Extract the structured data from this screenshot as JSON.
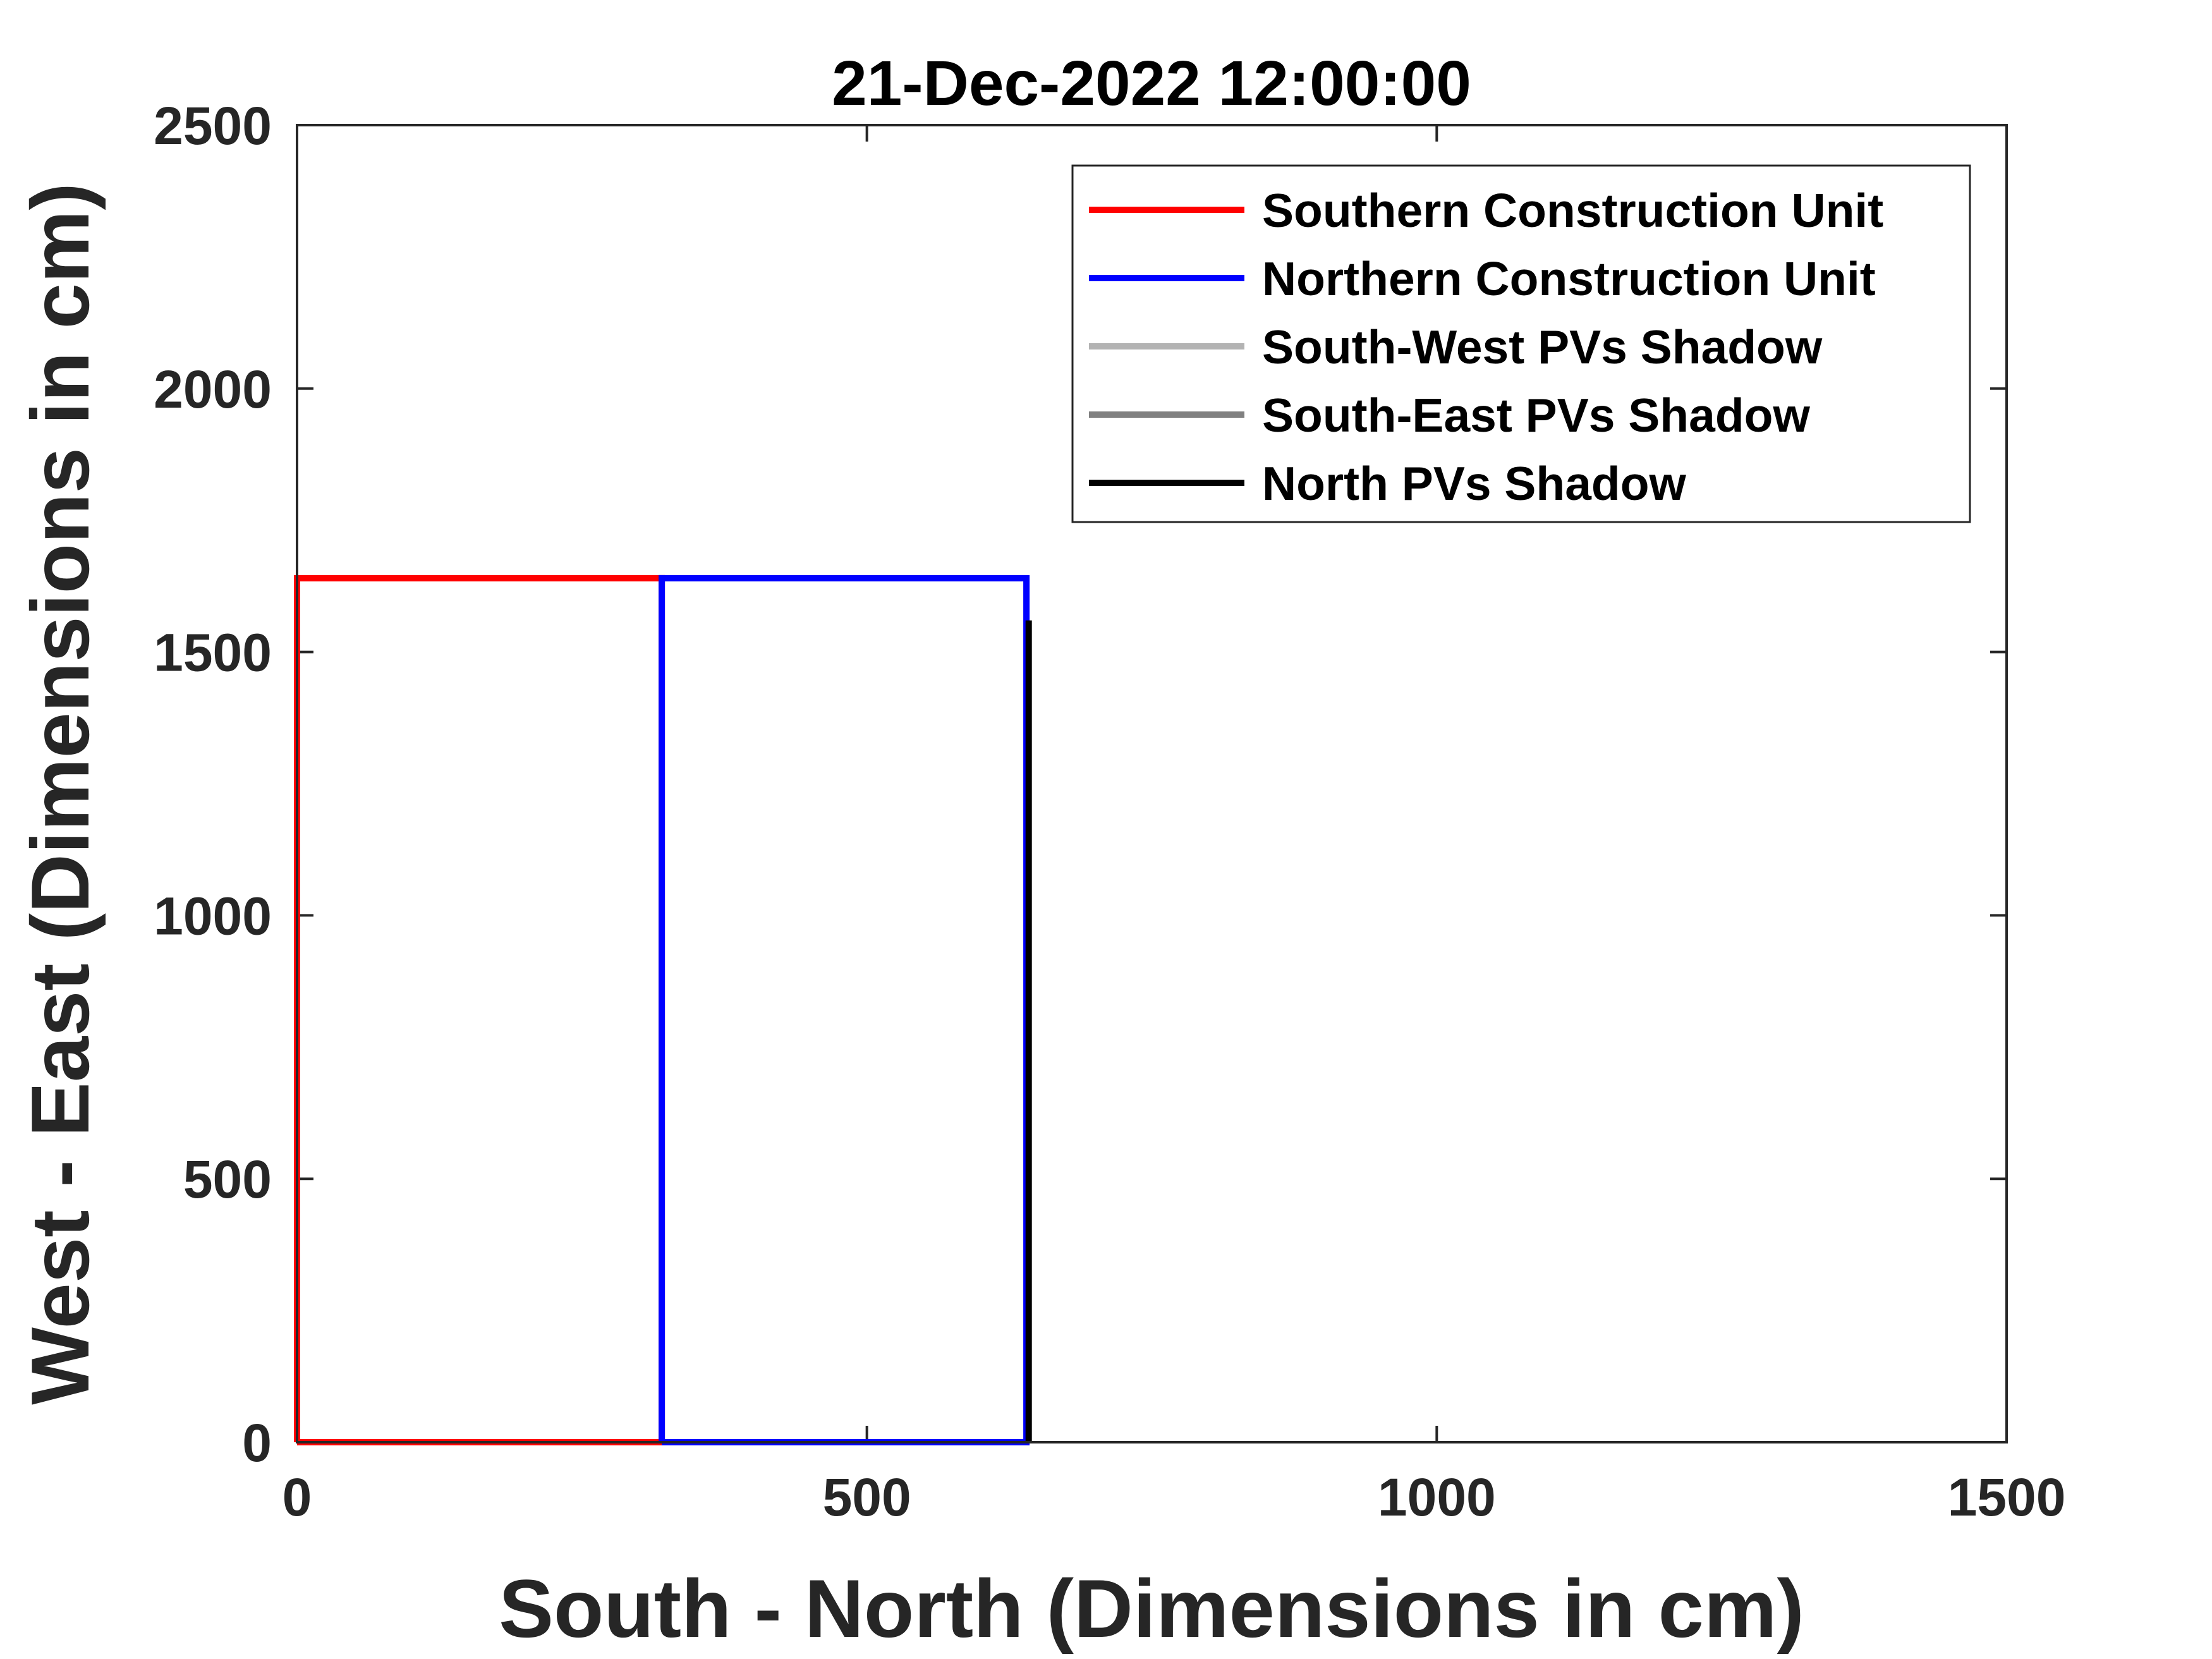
{
  "chart_data": {
    "type": "line",
    "title": "21-Dec-2022 12:00:00",
    "xlabel": "South - North (Dimensions in cm)",
    "ylabel": "West - East (Dimensions in cm)",
    "xlim": [
      0,
      1500
    ],
    "ylim": [
      0,
      2500
    ],
    "xticks": [
      0,
      500,
      1000,
      1500
    ],
    "yticks": [
      0,
      500,
      1000,
      1500,
      2000,
      2500
    ],
    "xtick_labels": [
      "0",
      "500",
      "1000",
      "1500"
    ],
    "ytick_labels": [
      "0",
      "500",
      "1000",
      "1500",
      "2000",
      "2500"
    ],
    "grid": false,
    "legend_position": "top-right",
    "series": [
      {
        "name": "Southern Construction Unit",
        "color": "#ff0000",
        "x": [
          0,
          320,
          320,
          0,
          0
        ],
        "y": [
          0,
          0,
          1640,
          1640,
          0
        ]
      },
      {
        "name": "Northern Construction Unit",
        "color": "#0000ff",
        "x": [
          320,
          640,
          640,
          320,
          320
        ],
        "y": [
          0,
          0,
          1640,
          1640,
          0
        ]
      },
      {
        "name": "South-West PVs Shadow",
        "color": "#b3b3b3",
        "x": [],
        "y": []
      },
      {
        "name": "South-East PVs Shadow",
        "color": "#808080",
        "x": [],
        "y": []
      },
      {
        "name": "North PVs Shadow",
        "color": "#000000",
        "x": [
          642,
          642
        ],
        "y": [
          0,
          1560
        ]
      }
    ]
  }
}
